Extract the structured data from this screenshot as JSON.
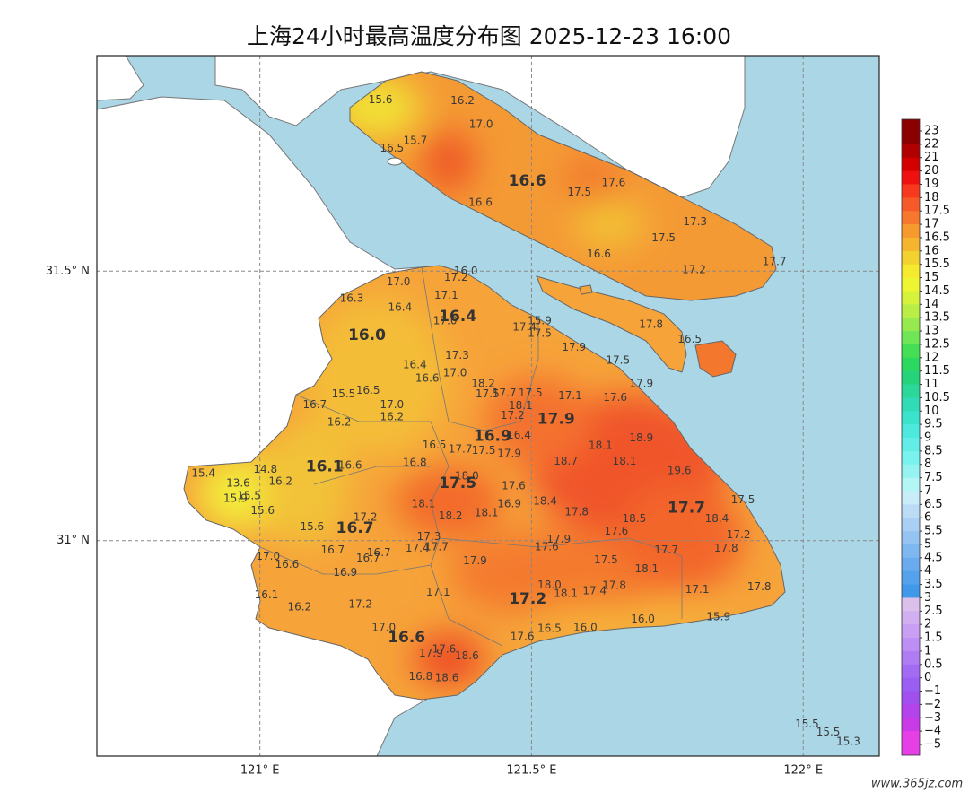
{
  "title": "上海24小时最高温度分布图 2025-12-23 16:00",
  "watermark": "www.365jz.com",
  "map": {
    "xlim": [
      120.7,
      122.14
    ],
    "ylim": [
      30.6,
      31.9
    ],
    "grid": true,
    "xticks": [
      {
        "value": 121,
        "label": "121° E"
      },
      {
        "value": 121.5,
        "label": "121.5° E"
      },
      {
        "value": 122,
        "label": "122° E"
      }
    ],
    "yticks": [
      {
        "value": 31,
        "label": "31° N"
      },
      {
        "value": 31.5,
        "label": "31.5° N"
      }
    ]
  },
  "stations": [
    {
      "value": 15.6,
      "lon": 121.222,
      "lat": 31.818
    },
    {
      "value": 16.2,
      "lon": 121.373,
      "lat": 31.816
    },
    {
      "value": 17,
      "label": "17.0",
      "lon": 121.407,
      "lat": 31.772
    },
    {
      "value": 16.5,
      "lon": 121.243,
      "lat": 31.728
    },
    {
      "value": 15.7,
      "lon": 121.286,
      "lat": 31.742
    },
    {
      "value": 16.6,
      "lon": 121.492,
      "lat": 31.667,
      "major": true
    },
    {
      "value": 17.6,
      "lon": 121.651,
      "lat": 31.664
    },
    {
      "value": 17.5,
      "lon": 121.588,
      "lat": 31.646
    },
    {
      "value": 16.6,
      "lon": 121.406,
      "lat": 31.627
    },
    {
      "value": 17.3,
      "lon": 121.801,
      "lat": 31.591
    },
    {
      "value": 17.5,
      "lon": 121.743,
      "lat": 31.561
    },
    {
      "value": 16.6,
      "lon": 121.624,
      "lat": 31.531
    },
    {
      "value": 17.2,
      "lon": 121.799,
      "lat": 31.502
    },
    {
      "value": 17.7,
      "lon": 121.947,
      "lat": 31.517
    },
    {
      "value": 16,
      "label": "16.0",
      "lon": 121.379,
      "lat": 31.5
    },
    {
      "value": 17.2,
      "lon": 121.361,
      "lat": 31.488
    },
    {
      "value": 17,
      "label": "17.0",
      "lon": 121.255,
      "lat": 31.48
    },
    {
      "value": 16.3,
      "lon": 121.169,
      "lat": 31.449
    },
    {
      "value": 17.1,
      "lon": 121.343,
      "lat": 31.455
    },
    {
      "value": 16.4,
      "lon": 121.258,
      "lat": 31.432
    },
    {
      "value": 16.4,
      "lon": 121.364,
      "lat": 31.416,
      "major": true
    },
    {
      "value": 17,
      "label": "17.0",
      "lon": 121.341,
      "lat": 31.407
    },
    {
      "value": 15.9,
      "lon": 121.515,
      "lat": 31.407
    },
    {
      "value": 17.5,
      "lon": 121.515,
      "lat": 31.384
    },
    {
      "value": 17.4,
      "lon": 121.487,
      "lat": 31.396
    },
    {
      "value": 16,
      "label": "16.0",
      "lon": 121.197,
      "lat": 31.381,
      "major": true
    },
    {
      "value": 17.8,
      "lon": 121.72,
      "lat": 31.401
    },
    {
      "value": 16.5,
      "lon": 121.791,
      "lat": 31.373
    },
    {
      "value": 17.9,
      "lon": 121.578,
      "lat": 31.358
    },
    {
      "value": 17.3,
      "lon": 121.363,
      "lat": 31.343
    },
    {
      "value": 17.5,
      "lon": 121.659,
      "lat": 31.334
    },
    {
      "value": 16.4,
      "lon": 121.285,
      "lat": 31.326
    },
    {
      "value": 17,
      "label": "17.0",
      "lon": 121.359,
      "lat": 31.311
    },
    {
      "value": 16.6,
      "lon": 121.308,
      "lat": 31.301
    },
    {
      "value": 17.9,
      "lon": 121.702,
      "lat": 31.291
    },
    {
      "value": 18.2,
      "lon": 121.411,
      "lat": 31.291
    },
    {
      "value": 15.5,
      "lon": 121.154,
      "lat": 31.272
    },
    {
      "value": 16.5,
      "lon": 121.199,
      "lat": 31.278
    },
    {
      "value": 17.5,
      "lon": 121.419,
      "lat": 31.272
    },
    {
      "value": 17.7,
      "lon": 121.45,
      "lat": 31.273
    },
    {
      "value": 17.5,
      "lon": 121.498,
      "lat": 31.273
    },
    {
      "value": 17.1,
      "lon": 121.571,
      "lat": 31.268
    },
    {
      "value": 17.6,
      "lon": 121.654,
      "lat": 31.265
    },
    {
      "value": 16.7,
      "lon": 121.101,
      "lat": 31.252
    },
    {
      "value": 17,
      "label": "17.0",
      "lon": 121.243,
      "lat": 31.252
    },
    {
      "value": 18.1,
      "lon": 121.48,
      "lat": 31.25
    },
    {
      "value": 16.2,
      "lon": 121.243,
      "lat": 31.229
    },
    {
      "value": 17.2,
      "lon": 121.465,
      "lat": 31.232
    },
    {
      "value": 17.9,
      "lon": 121.545,
      "lat": 31.225,
      "major": true
    },
    {
      "value": 16.2,
      "lon": 121.146,
      "lat": 31.219
    },
    {
      "value": 16.9,
      "lon": 121.428,
      "lat": 31.193,
      "major": true
    },
    {
      "value": 16.4,
      "lon": 121.477,
      "lat": 31.195
    },
    {
      "value": 16.5,
      "lon": 121.321,
      "lat": 31.177
    },
    {
      "value": 18.1,
      "lon": 121.627,
      "lat": 31.176
    },
    {
      "value": 18.9,
      "lon": 121.702,
      "lat": 31.19
    },
    {
      "value": 17.7,
      "lon": 121.369,
      "lat": 31.169
    },
    {
      "value": 17.5,
      "lon": 121.412,
      "lat": 31.167
    },
    {
      "value": 17.9,
      "lon": 121.459,
      "lat": 31.161
    },
    {
      "value": 16.8,
      "lon": 121.285,
      "lat": 31.144
    },
    {
      "value": 18.7,
      "lon": 121.563,
      "lat": 31.147
    },
    {
      "value": 18.1,
      "lon": 121.671,
      "lat": 31.147
    },
    {
      "value": 16.1,
      "lon": 121.119,
      "lat": 31.137,
      "major": true
    },
    {
      "value": 16.6,
      "lon": 121.166,
      "lat": 31.139
    },
    {
      "value": 15.4,
      "lon": 120.896,
      "lat": 31.124
    },
    {
      "value": 14.8,
      "lon": 121.01,
      "lat": 31.132
    },
    {
      "value": 19.6,
      "lon": 121.772,
      "lat": 31.129
    },
    {
      "value": 18,
      "label": "18.0",
      "lon": 121.381,
      "lat": 31.119
    },
    {
      "value": 16.2,
      "lon": 121.038,
      "lat": 31.109
    },
    {
      "value": 13.6,
      "lon": 120.96,
      "lat": 31.106
    },
    {
      "value": 15.5,
      "lon": 120.98,
      "lat": 31.083
    },
    {
      "value": 15.9,
      "lon": 120.955,
      "lat": 31.078
    },
    {
      "value": 17.5,
      "lon": 121.364,
      "lat": 31.106,
      "major": true
    },
    {
      "value": 17.6,
      "lon": 121.467,
      "lat": 31.101
    },
    {
      "value": 17.5,
      "lon": 121.889,
      "lat": 31.075
    },
    {
      "value": 18.1,
      "lon": 121.301,
      "lat": 31.068
    },
    {
      "value": 16.9,
      "lon": 121.459,
      "lat": 31.068
    },
    {
      "value": 18.4,
      "lon": 121.525,
      "lat": 31.073
    },
    {
      "value": 15.6,
      "lon": 121.005,
      "lat": 31.055
    },
    {
      "value": 17.7,
      "lon": 121.785,
      "lat": 31.06,
      "major": true
    },
    {
      "value": 17.8,
      "lon": 121.583,
      "lat": 31.053
    },
    {
      "value": 18.2,
      "lon": 121.351,
      "lat": 31.045
    },
    {
      "value": 18.1,
      "lon": 121.417,
      "lat": 31.051
    },
    {
      "value": 18.5,
      "lon": 121.689,
      "lat": 31.04
    },
    {
      "value": 18.4,
      "lon": 121.841,
      "lat": 31.04
    },
    {
      "value": 17.2,
      "lon": 121.194,
      "lat": 31.043
    },
    {
      "value": 16.7,
      "lon": 121.175,
      "lat": 31.023,
      "major": true
    },
    {
      "value": 15.6,
      "lon": 121.096,
      "lat": 31.025
    },
    {
      "value": 17.6,
      "lon": 121.656,
      "lat": 31.017
    },
    {
      "value": 17.2,
      "lon": 121.881,
      "lat": 31.01
    },
    {
      "value": 17.3,
      "lon": 121.311,
      "lat": 31.007
    },
    {
      "value": 17.9,
      "lon": 121.55,
      "lat": 31.002
    },
    {
      "value": 17.6,
      "lon": 121.528,
      "lat": 30.988
    },
    {
      "value": 17.4,
      "lon": 121.29,
      "lat": 30.985
    },
    {
      "value": 17.7,
      "lon": 121.325,
      "lat": 30.988
    },
    {
      "value": 16.7,
      "lon": 121.134,
      "lat": 30.982
    },
    {
      "value": 16.7,
      "lon": 121.219,
      "lat": 30.977
    },
    {
      "value": 16.7,
      "lon": 121.199,
      "lat": 30.967
    },
    {
      "value": 17.7,
      "lon": 121.748,
      "lat": 30.982
    },
    {
      "value": 17.8,
      "lon": 121.858,
      "lat": 30.985
    },
    {
      "value": 17,
      "label": "17.0",
      "lon": 121.015,
      "lat": 30.97
    },
    {
      "value": 17.9,
      "lon": 121.396,
      "lat": 30.962
    },
    {
      "value": 17.5,
      "lon": 121.637,
      "lat": 30.964
    },
    {
      "value": 16.6,
      "lon": 121.05,
      "lat": 30.955
    },
    {
      "value": 18.1,
      "lon": 121.712,
      "lat": 30.947
    },
    {
      "value": 16.9,
      "lon": 121.157,
      "lat": 30.94
    },
    {
      "value": 18,
      "label": "18.0",
      "lon": 121.533,
      "lat": 30.917
    },
    {
      "value": 17.8,
      "lon": 121.652,
      "lat": 30.916
    },
    {
      "value": 17.4,
      "lon": 121.616,
      "lat": 30.906
    },
    {
      "value": 18.1,
      "lon": 121.563,
      "lat": 30.901
    },
    {
      "value": 17.1,
      "lon": 121.328,
      "lat": 30.904
    },
    {
      "value": 17.2,
      "lon": 121.493,
      "lat": 30.891,
      "major": true
    },
    {
      "value": 17.1,
      "lon": 121.805,
      "lat": 30.909
    },
    {
      "value": 17.8,
      "lon": 121.919,
      "lat": 30.914
    },
    {
      "value": 16.1,
      "lon": 121.012,
      "lat": 30.899
    },
    {
      "value": 16.2,
      "lon": 121.073,
      "lat": 30.876
    },
    {
      "value": 17.2,
      "lon": 121.185,
      "lat": 30.881
    },
    {
      "value": 16,
      "label": "16.0",
      "lon": 121.705,
      "lat": 30.854
    },
    {
      "value": 15.9,
      "lon": 121.844,
      "lat": 30.858
    },
    {
      "value": 16,
      "label": "16.0",
      "lon": 121.599,
      "lat": 30.838
    },
    {
      "value": 16.5,
      "lon": 121.533,
      "lat": 30.836
    },
    {
      "value": 17.6,
      "lon": 121.339,
      "lat": 30.798
    },
    {
      "value": 17,
      "label": "17.0",
      "lon": 121.228,
      "lat": 30.838
    },
    {
      "value": 17.6,
      "lon": 121.483,
      "lat": 30.821
    },
    {
      "value": 16.6,
      "lon": 121.27,
      "lat": 30.82,
      "major": true
    },
    {
      "value": 17.9,
      "lon": 121.315,
      "lat": 30.791
    },
    {
      "value": 18.6,
      "lon": 121.381,
      "lat": 30.786
    },
    {
      "value": 16.8,
      "lon": 121.296,
      "lat": 30.747
    },
    {
      "value": 18.6,
      "lon": 121.344,
      "lat": 30.745
    },
    {
      "value": 15.5,
      "lon": 122.007,
      "lat": 30.659
    },
    {
      "value": 15.5,
      "lon": 122.046,
      "lat": 30.644
    },
    {
      "value": 15.3,
      "lon": 122.083,
      "lat": 30.627
    }
  ],
  "colorbar": {
    "ticks": [
      23,
      22,
      21,
      20,
      19,
      18,
      17.5,
      17,
      16.5,
      16,
      15.5,
      15,
      14.5,
      14,
      13.5,
      13,
      12.5,
      12,
      11.5,
      11,
      10.5,
      10,
      9.5,
      9,
      8.5,
      8,
      7.5,
      7,
      6.5,
      6,
      5.5,
      5,
      4.5,
      4,
      3.5,
      3,
      2.5,
      2,
      1.5,
      1,
      0.5,
      0,
      {
        "value": -1,
        "label": "−1"
      },
      {
        "value": -2,
        "label": "−2"
      },
      {
        "value": -3,
        "label": "−3"
      },
      {
        "value": -4,
        "label": "−4"
      },
      {
        "value": -5,
        "label": "−5"
      }
    ],
    "colors": [
      "#8b0000",
      "#b00000",
      "#d40000",
      "#f01010",
      "#f73a1e",
      "#f65a28",
      "#f7782d",
      "#f79a2d",
      "#f5b52e",
      "#f3d12e",
      "#f5ea2e",
      "#eef531",
      "#d7f23a",
      "#b8ee45",
      "#96ea4e",
      "#6ee655",
      "#44df55",
      "#2bd860",
      "#25d47a",
      "#2bd89a",
      "#2fdcb5",
      "#3ae3cb",
      "#4ce9dc",
      "#62ede6",
      "#7af2ee",
      "#95f4f2",
      "#b2f6f6",
      "#c8ecf8",
      "#bcdcf6",
      "#a9cff4",
      "#95c3f2",
      "#7fb7f0",
      "#69abee",
      "#55a2ec",
      "#3f99e8",
      "#dcc0ec",
      "#d2aff0",
      "#c89ff2",
      "#bd8ef4",
      "#b07cf4",
      "#a36bf3",
      "#9a5ef3",
      "#a24ff0",
      "#b443ec",
      "#ca3be8",
      "#e63fe6"
    ]
  }
}
